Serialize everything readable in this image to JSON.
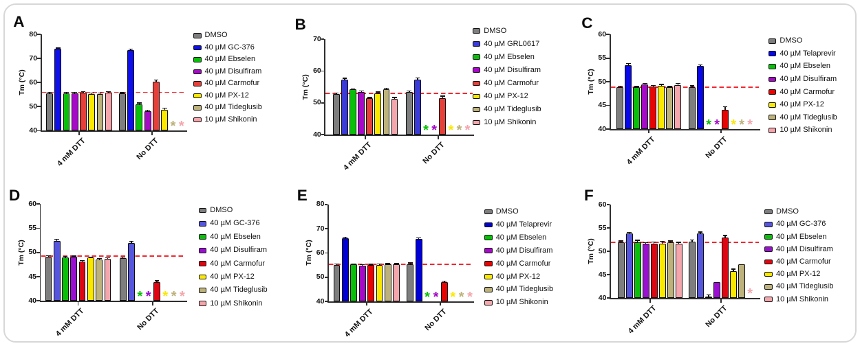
{
  "figure": {
    "background": "#ffffff",
    "border_color": "#d7d7d7",
    "condition_labels": [
      "4 mM DTT",
      "No DTT"
    ],
    "missing_bar_marker": "*"
  },
  "chart_data": [
    {
      "panel": "A",
      "type": "bar",
      "ylabel": "Tm (°C)",
      "ylim": [
        40,
        80
      ],
      "yticks": [
        40,
        50,
        60,
        70,
        80
      ],
      "categories": [
        "4 mM DTT",
        "No DTT"
      ],
      "grid": false,
      "legend_position": "right",
      "dashed_reference_line": {
        "y": 55.9,
        "color": "#f2262e"
      },
      "series": [
        {
          "name": "DMSO",
          "color": "#7e7e7e",
          "values": [
            55.5,
            55.4
          ],
          "errors": [
            0.2,
            0.2
          ]
        },
        {
          "name": "40 µM GC-376",
          "color": "#0f0fe8",
          "values": [
            73.9,
            73.4
          ],
          "errors": [
            0.3,
            0.4
          ]
        },
        {
          "name": "40 µM Ebselen",
          "color": "#0abf0a",
          "values": [
            55.6,
            51.0
          ],
          "errors": [
            0.15,
            0.4
          ]
        },
        {
          "name": "40 µM Disulfiram",
          "color": "#a50ac6",
          "values": [
            55.6,
            48.0
          ],
          "errors": [
            0.15,
            0.4
          ]
        },
        {
          "name": "40 µM Carmofur",
          "color": "#e5403a",
          "values": [
            55.8,
            60.4
          ],
          "errors": [
            0.2,
            0.55
          ]
        },
        {
          "name": "40 µM PX-12",
          "color": "#fbe800",
          "values": [
            55.2,
            48.7
          ],
          "errors": [
            0.25,
            0.5
          ]
        },
        {
          "name": "40 µM Tideglusib",
          "color": "#bdb27b",
          "values": [
            55.3,
            null
          ],
          "errors": [
            0.2,
            null
          ]
        },
        {
          "name": "10 µM Shikonin",
          "color": "#f4a6ac",
          "values": [
            55.8,
            null
          ],
          "errors": [
            0.2,
            null
          ]
        }
      ]
    },
    {
      "panel": "B",
      "type": "bar",
      "ylabel": "Tm (°C)",
      "ylim": [
        40,
        70
      ],
      "yticks": [
        40,
        50,
        60,
        70
      ],
      "categories": [
        "4 mM DTT",
        "No DTT"
      ],
      "grid": false,
      "legend_position": "right",
      "dashed_reference_line": {
        "y": 53.0,
        "color": "#f2262e"
      },
      "series": [
        {
          "name": "DMSO",
          "color": "#7e7e7e",
          "values": [
            52.7,
            53.4
          ],
          "errors": [
            0.25,
            0.2
          ]
        },
        {
          "name": "40 µM GRL0617",
          "color": "#3b3bd7",
          "values": [
            57.4,
            57.4
          ],
          "errors": [
            0.2,
            0.3
          ]
        },
        {
          "name": "40 µM Ebselen",
          "color": "#0abf0a",
          "values": [
            54.2,
            null
          ],
          "errors": [
            0.1,
            null
          ]
        },
        {
          "name": "40 µM Disulfiram",
          "color": "#a50ac6",
          "values": [
            53.5,
            null
          ],
          "errors": [
            0.2,
            null
          ]
        },
        {
          "name": "40 µM Carmofur",
          "color": "#e5403a",
          "values": [
            51.4,
            51.5
          ],
          "errors": [
            0.2,
            0.5
          ]
        },
        {
          "name": "40 µM PX-12",
          "color": "#fbe800",
          "values": [
            53.1,
            null
          ],
          "errors": [
            0.2,
            null
          ]
        },
        {
          "name": "40 µM Tideglusib",
          "color": "#bdb27b",
          "values": [
            54.3,
            null
          ],
          "errors": [
            0.2,
            null
          ]
        },
        {
          "name": "10 µM Shikonin",
          "color": "#f4a6ac",
          "values": [
            51.3,
            null
          ],
          "errors": [
            0.3,
            null
          ]
        }
      ]
    },
    {
      "panel": "C",
      "type": "bar",
      "ylabel": "Tm (°C)",
      "ylim": [
        40,
        60
      ],
      "yticks": [
        40,
        45,
        50,
        55,
        60
      ],
      "categories": [
        "4 mM DTT",
        "No DTT"
      ],
      "grid": false,
      "legend_position": "right",
      "dashed_reference_line": {
        "y": 48.9,
        "color": "#f2262e"
      },
      "series": [
        {
          "name": "DMSO",
          "color": "#7e7e7e",
          "values": [
            48.9,
            48.9
          ],
          "errors": [
            0.1,
            0.15
          ]
        },
        {
          "name": "40 µM Telaprevir",
          "color": "#0707e8",
          "values": [
            53.5,
            53.3
          ],
          "errors": [
            0.25,
            0.2
          ]
        },
        {
          "name": "40 µM Ebselen",
          "color": "#0abf0a",
          "values": [
            48.8,
            null
          ],
          "errors": [
            0.1,
            null
          ]
        },
        {
          "name": "40 µM Disulfiram",
          "color": "#a50ac6",
          "values": [
            49.4,
            null
          ],
          "errors": [
            0.2,
            null
          ]
        },
        {
          "name": "40 µM Carmofur",
          "color": "#e60502",
          "values": [
            49.0,
            44.1
          ],
          "errors": [
            0.15,
            0.5
          ]
        },
        {
          "name": "40 µM PX-12",
          "color": "#fbe800",
          "values": [
            49.2,
            null
          ],
          "errors": [
            0.15,
            null
          ]
        },
        {
          "name": "40 µM Tideglusib",
          "color": "#bdb27b",
          "values": [
            48.8,
            null
          ],
          "errors": [
            0.15,
            null
          ]
        },
        {
          "name": "10 µM Shikonin",
          "color": "#f4a6ac",
          "values": [
            49.3,
            null
          ],
          "errors": [
            0.25,
            null
          ]
        }
      ]
    },
    {
      "panel": "D",
      "type": "bar",
      "ylabel": "Tm (°C)",
      "ylim": [
        40,
        60
      ],
      "yticks": [
        40,
        45,
        50,
        55,
        60
      ],
      "categories": [
        "4 mM DTT",
        "No DTT"
      ],
      "grid": false,
      "legend_position": "right",
      "dashed_reference_line": {
        "y": 49.3,
        "color": "#f2262e"
      },
      "series": [
        {
          "name": "DMSO",
          "color": "#7e7e7e",
          "values": [
            49.1,
            48.8
          ],
          "errors": [
            0.15,
            0.15
          ]
        },
        {
          "name": "40 µM GC-376",
          "color": "#5656dc",
          "values": [
            52.3,
            51.9
          ],
          "errors": [
            0.35,
            0.3
          ]
        },
        {
          "name": "40 µM Ebselen",
          "color": "#0abf0a",
          "values": [
            49.0,
            null
          ],
          "errors": [
            0.1,
            null
          ]
        },
        {
          "name": "40 µM Disulfiram",
          "color": "#9a10d0",
          "values": [
            49.1,
            null
          ],
          "errors": [
            0.1,
            null
          ]
        },
        {
          "name": "40 µM Carmofur",
          "color": "#dc0712",
          "values": [
            48.1,
            43.9
          ],
          "errors": [
            0.15,
            0.2
          ]
        },
        {
          "name": "40 µM PX-12",
          "color": "#fbe800",
          "values": [
            48.9,
            null
          ],
          "errors": [
            0.1,
            null
          ]
        },
        {
          "name": "40 µM Tideglusib",
          "color": "#bdb27b",
          "values": [
            48.6,
            null
          ],
          "errors": [
            0.1,
            null
          ]
        },
        {
          "name": "10 µM Shikonin",
          "color": "#f4a6ac",
          "values": [
            48.7,
            null
          ],
          "errors": [
            0.15,
            null
          ]
        }
      ]
    },
    {
      "panel": "E",
      "type": "bar",
      "ylabel": "Tm (°C)",
      "ylim": [
        40,
        80
      ],
      "yticks": [
        40,
        50,
        60,
        70,
        80
      ],
      "categories": [
        "4 mM DTT",
        "No DTT"
      ],
      "grid": false,
      "legend_position": "right",
      "dashed_reference_line": {
        "y": 55.2,
        "color": "#f2262e"
      },
      "series": [
        {
          "name": "DMSO",
          "color": "#7e7e7e",
          "values": [
            55.0,
            55.4
          ],
          "errors": [
            0.3,
            0.3
          ]
        },
        {
          "name": "40 µM Telaprevir",
          "color": "#0101d3",
          "values": [
            66.0,
            65.7
          ],
          "errors": [
            0.35,
            0.3
          ]
        },
        {
          "name": "40 µM Ebselen",
          "color": "#0abf0a",
          "values": [
            55.2,
            null
          ],
          "errors": [
            0.15,
            null
          ]
        },
        {
          "name": "40 µM Disulfiram",
          "color": "#a50ac6",
          "values": [
            54.8,
            null
          ],
          "errors": [
            0.3,
            null
          ]
        },
        {
          "name": "40 µM Carmofur",
          "color": "#e60502",
          "values": [
            55.0,
            47.8
          ],
          "errors": [
            0.15,
            0.5
          ]
        },
        {
          "name": "40 µM PX-12",
          "color": "#fbe800",
          "values": [
            55.1,
            null
          ],
          "errors": [
            0.15,
            null
          ]
        },
        {
          "name": "40 µM Tideglusib",
          "color": "#bdb27b",
          "values": [
            55.2,
            null
          ],
          "errors": [
            0.2,
            null
          ]
        },
        {
          "name": "10 µM Shikonin",
          "color": "#f4a6ac",
          "values": [
            55.3,
            null
          ],
          "errors": [
            0.15,
            null
          ]
        }
      ]
    },
    {
      "panel": "F",
      "type": "bar",
      "ylabel": "Tm (°C)",
      "ylim": [
        40,
        60
      ],
      "yticks": [
        40,
        45,
        50,
        55,
        60
      ],
      "categories": [
        "4 mM DTT",
        "No DTT"
      ],
      "grid": false,
      "legend_position": "right",
      "dashed_reference_line": {
        "y": 52.0,
        "color": "#f2262e"
      },
      "series": [
        {
          "name": "DMSO",
          "color": "#7e7e7e",
          "values": [
            52.0,
            52.1
          ],
          "errors": [
            0.2,
            0.3
          ]
        },
        {
          "name": "40 µM GC-376",
          "color": "#5656dc",
          "values": [
            53.8,
            53.8
          ],
          "errors": [
            0.25,
            0.3
          ]
        },
        {
          "name": "40 µM Ebselen",
          "color": "#0abf0a",
          "values": [
            52.0,
            40.4
          ],
          "errors": [
            0.3,
            0.25
          ]
        },
        {
          "name": "40 µM Disulfiram",
          "color": "#9a10d0",
          "values": [
            51.6,
            43.5
          ],
          "errors": [
            0.25,
            0
          ]
        },
        {
          "name": "40 µM Carmofur",
          "color": "#dc0712",
          "values": [
            51.7,
            53.0
          ],
          "errors": [
            0.3,
            0.35
          ]
        },
        {
          "name": "40 µM PX-12",
          "color": "#fbe800",
          "values": [
            51.7,
            45.8
          ],
          "errors": [
            0.4,
            0.35
          ]
        },
        {
          "name": "40 µM Tideglusib",
          "color": "#bdb27b",
          "values": [
            52.0,
            47.3
          ],
          "errors": [
            0.2,
            0
          ]
        },
        {
          "name": "10 µM Shikonin",
          "color": "#f4a6ac",
          "values": [
            51.7,
            null
          ],
          "errors": [
            0.2,
            null
          ]
        }
      ]
    }
  ]
}
